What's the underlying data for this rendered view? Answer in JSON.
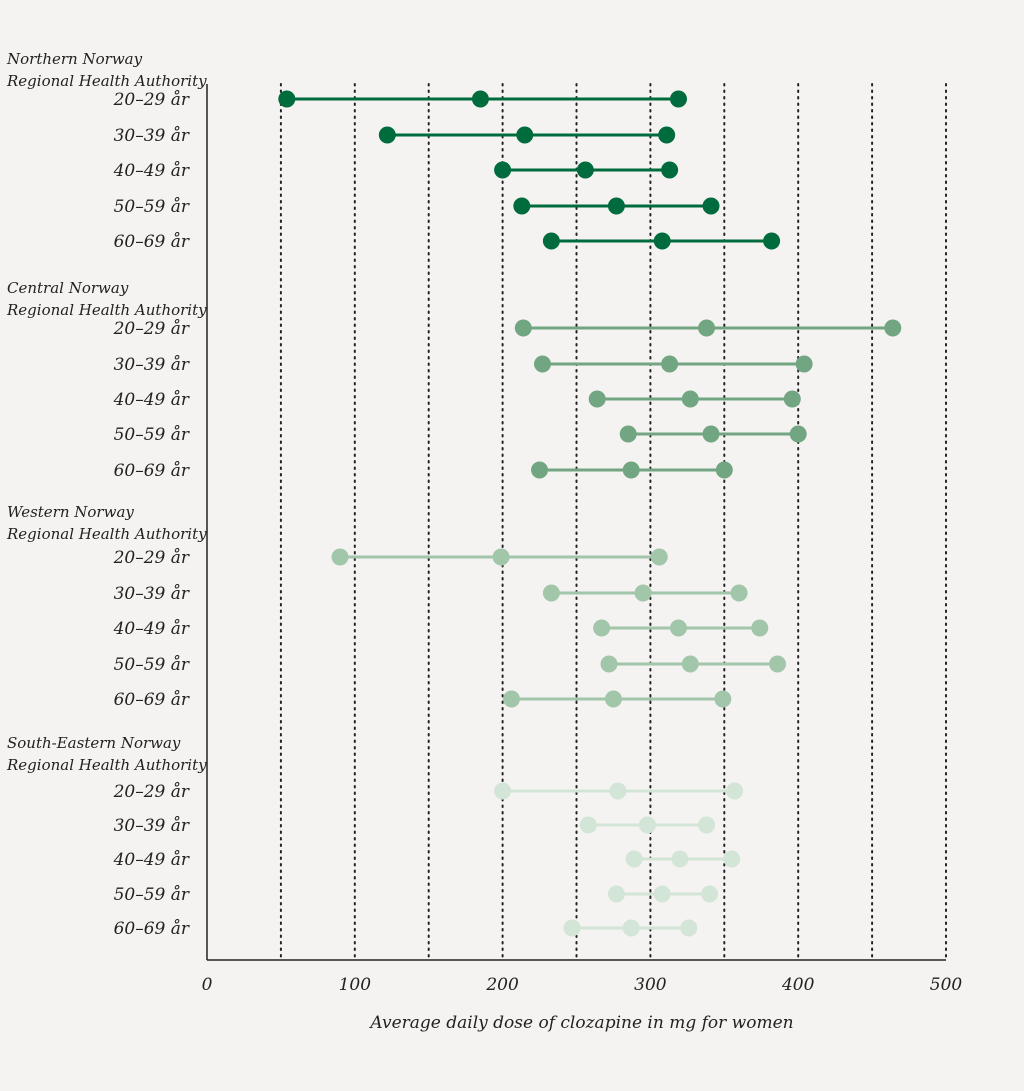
{
  "chart_data": {
    "type": "dot-range",
    "xlabel": "Average daily dose of clozapine in mg for women",
    "xlim": [
      0,
      500
    ],
    "xticks": [
      0,
      100,
      200,
      300,
      400,
      500
    ],
    "gridlines": [
      50,
      100,
      150,
      200,
      250,
      300,
      350,
      400,
      450,
      500
    ],
    "grid": true,
    "groups": [
      {
        "name_line1": "Northern Norway",
        "name_line2": "Regional Health Authority",
        "color": "#006b3c",
        "rows": [
          {
            "label": "20–29 år",
            "values": [
              54,
              185,
              319
            ]
          },
          {
            "label": "30–39 år",
            "values": [
              122,
              215,
              311
            ]
          },
          {
            "label": "40–49 år",
            "values": [
              200,
              256,
              313
            ]
          },
          {
            "label": "50–59 år",
            "values": [
              213,
              277,
              341
            ]
          },
          {
            "label": "60–69 år",
            "values": [
              233,
              308,
              382
            ]
          }
        ]
      },
      {
        "name_line1": "Central Norway",
        "name_line2": "Regional Health Authority",
        "color": "#72a581",
        "rows": [
          {
            "label": "20–29 år",
            "values": [
              214,
              338,
              464
            ]
          },
          {
            "label": "30–39 år",
            "values": [
              227,
              313,
              404
            ]
          },
          {
            "label": "40–49 år",
            "values": [
              264,
              327,
              396
            ]
          },
          {
            "label": "50–59 år",
            "values": [
              285,
              341,
              400
            ]
          },
          {
            "label": "60–69 år",
            "values": [
              225,
              287,
              350
            ]
          }
        ]
      },
      {
        "name_line1": "Western Norway",
        "name_line2": "Regional Health Authority",
        "color": "#a2c6aa",
        "rows": [
          {
            "label": "20–29 år",
            "values": [
              90,
              199,
              306
            ]
          },
          {
            "label": "30–39 år",
            "values": [
              233,
              295,
              360
            ]
          },
          {
            "label": "40–49 år",
            "values": [
              267,
              319,
              374
            ]
          },
          {
            "label": "50–59 år",
            "values": [
              272,
              327,
              386
            ]
          },
          {
            "label": "60–69 år",
            "values": [
              206,
              275,
              349
            ]
          }
        ]
      },
      {
        "name_line1": "South-Eastern Norway",
        "name_line2": "Regional Health Authority",
        "color": "#d3e5d6",
        "rows": [
          {
            "label": "20–29 år",
            "values": [
              200,
              278,
              357
            ]
          },
          {
            "label": "30–39 år",
            "values": [
              258,
              298,
              338
            ]
          },
          {
            "label": "40–49 år",
            "values": [
              289,
              320,
              355
            ]
          },
          {
            "label": "50–59 år",
            "values": [
              277,
              308,
              340
            ]
          },
          {
            "label": "60–69 år",
            "values": [
              247,
              287,
              326
            ]
          }
        ]
      }
    ]
  }
}
